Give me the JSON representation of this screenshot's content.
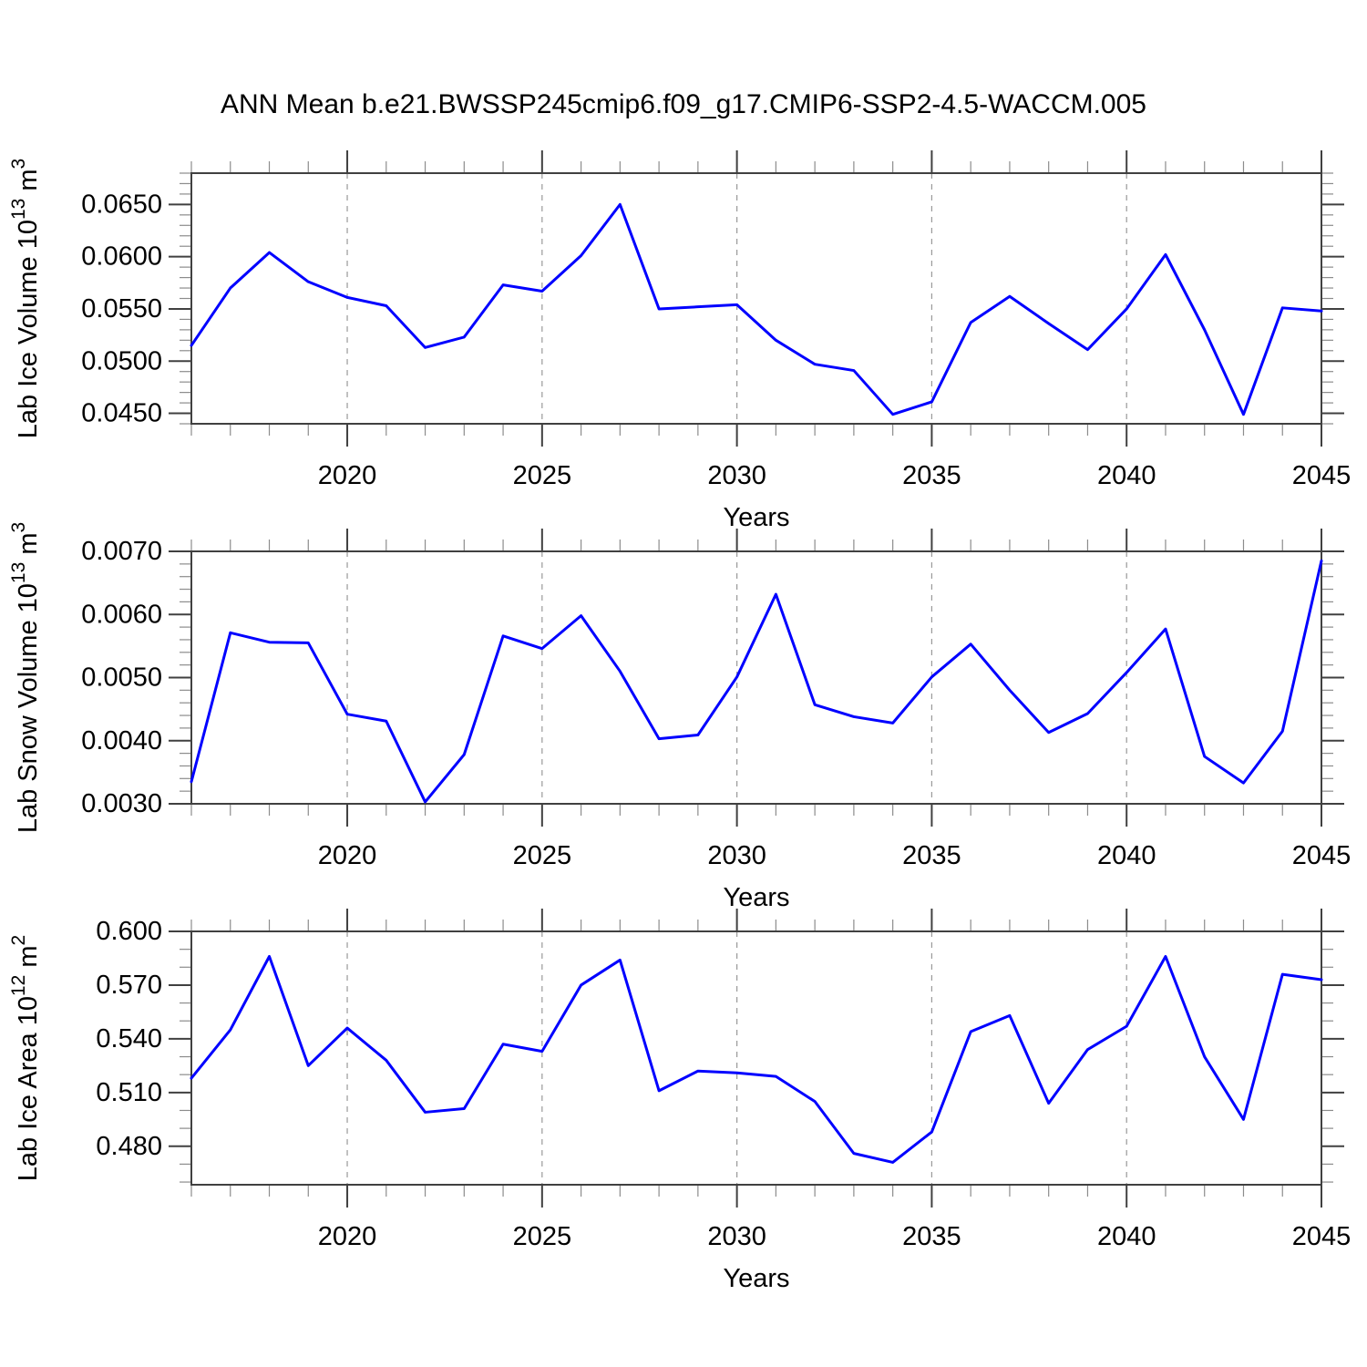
{
  "title": "ANN Mean b.e21.BWSSP245cmip6.f09_g17.CMIP6-SSP2-4.5-WACCM.005",
  "style": {
    "line_color": "#0000ff",
    "frame_color": "#404040",
    "grid_color": "#999999",
    "text_color": "#000000"
  },
  "x_axis": {
    "label": "Years",
    "range": [
      2016,
      2045
    ],
    "major_ticks": [
      2020,
      2025,
      2030,
      2035,
      2040,
      2045
    ],
    "tick_labels": [
      "2020",
      "2025",
      "2030",
      "2035",
      "2040",
      "2045"
    ],
    "minor_step": 1,
    "grid_lines": [
      2020,
      2025,
      2030,
      2035,
      2040
    ]
  },
  "chart_data": [
    {
      "type": "line",
      "name": "lab-ice-volume",
      "ylabel": "Lab Ice Volume 10^13 m^3",
      "ylabel_parts": [
        [
          "Lab Ice Volume 10",
          false
        ],
        [
          "13",
          true
        ],
        [
          " m",
          false
        ],
        [
          "3",
          true
        ]
      ],
      "xlabel": "Years",
      "grid": true,
      "legend": "none",
      "ylim": [
        0.044,
        0.068
      ],
      "y_major_ticks": [
        0.045,
        0.05,
        0.055,
        0.06,
        0.065
      ],
      "y_tick_labels": [
        "0.0450",
        "0.0500",
        "0.0550",
        "0.0600",
        "0.0650"
      ],
      "y_minor_step": 0.001,
      "x": [
        2016,
        2017,
        2018,
        2019,
        2020,
        2021,
        2022,
        2023,
        2024,
        2025,
        2026,
        2027,
        2028,
        2029,
        2030,
        2031,
        2032,
        2033,
        2034,
        2035,
        2036,
        2037,
        2038,
        2039,
        2040,
        2041,
        2042,
        2043,
        2044,
        2045
      ],
      "values": [
        0.0515,
        0.057,
        0.0604,
        0.0576,
        0.0561,
        0.0553,
        0.0513,
        0.0523,
        0.0573,
        0.0567,
        0.0601,
        0.065,
        0.055,
        0.0552,
        0.0554,
        0.052,
        0.0497,
        0.0491,
        0.0449,
        0.0461,
        0.0537,
        0.0562,
        0.0536,
        0.0511,
        0.055,
        0.0602,
        0.053,
        0.0449,
        0.0551,
        0.0548
      ]
    },
    {
      "type": "line",
      "name": "lab-snow-volume",
      "ylabel": "Lab Snow Volume 10^13 m^3",
      "ylabel_parts": [
        [
          "Lab Snow Volume 10",
          false
        ],
        [
          "13",
          true
        ],
        [
          " m",
          false
        ],
        [
          "3",
          true
        ]
      ],
      "xlabel": "Years",
      "grid": true,
      "legend": "none",
      "ylim": [
        0.003,
        0.007
      ],
      "y_major_ticks": [
        0.003,
        0.004,
        0.005,
        0.006,
        0.007
      ],
      "y_tick_labels": [
        "0.0030",
        "0.0040",
        "0.0050",
        "0.0060",
        "0.0070"
      ],
      "y_minor_step": 0.0002,
      "x": [
        2016,
        2017,
        2018,
        2019,
        2020,
        2021,
        2022,
        2023,
        2024,
        2025,
        2026,
        2027,
        2028,
        2029,
        2030,
        2031,
        2032,
        2033,
        2034,
        2035,
        2036,
        2037,
        2038,
        2039,
        2040,
        2041,
        2042,
        2043,
        2044,
        2045
      ],
      "values": [
        0.00335,
        0.00571,
        0.00556,
        0.00555,
        0.00442,
        0.00431,
        0.00303,
        0.00378,
        0.00566,
        0.00546,
        0.00598,
        0.0051,
        0.00403,
        0.00409,
        0.00501,
        0.00632,
        0.00457,
        0.00438,
        0.00428,
        0.00501,
        0.00553,
        0.0048,
        0.00413,
        0.00443,
        0.00508,
        0.00577,
        0.00375,
        0.00333,
        0.00415,
        0.00685
      ]
    },
    {
      "type": "line",
      "name": "lab-ice-area",
      "ylabel": "Lab Ice Area 10^12 m^2",
      "ylabel_parts": [
        [
          "Lab Ice Area 10",
          false
        ],
        [
          "12",
          true
        ],
        [
          " m",
          false
        ],
        [
          "2",
          true
        ]
      ],
      "xlabel": "Years",
      "grid": true,
      "legend": "none",
      "ylim": [
        0.4585,
        0.6
      ],
      "y_major_ticks": [
        0.48,
        0.51,
        0.54,
        0.57,
        0.6
      ],
      "y_tick_labels": [
        "0.480",
        "0.510",
        "0.540",
        "0.570",
        "0.600"
      ],
      "y_minor_step": 0.01,
      "x": [
        2016,
        2017,
        2018,
        2019,
        2020,
        2021,
        2022,
        2023,
        2024,
        2025,
        2026,
        2027,
        2028,
        2029,
        2030,
        2031,
        2032,
        2033,
        2034,
        2035,
        2036,
        2037,
        2038,
        2039,
        2040,
        2041,
        2042,
        2043,
        2044,
        2045
      ],
      "values": [
        0.518,
        0.545,
        0.586,
        0.525,
        0.546,
        0.528,
        0.499,
        0.501,
        0.537,
        0.533,
        0.57,
        0.584,
        0.511,
        0.522,
        0.521,
        0.519,
        0.505,
        0.476,
        0.471,
        0.488,
        0.544,
        0.553,
        0.504,
        0.534,
        0.547,
        0.586,
        0.53,
        0.495,
        0.576,
        0.573
      ]
    }
  ]
}
